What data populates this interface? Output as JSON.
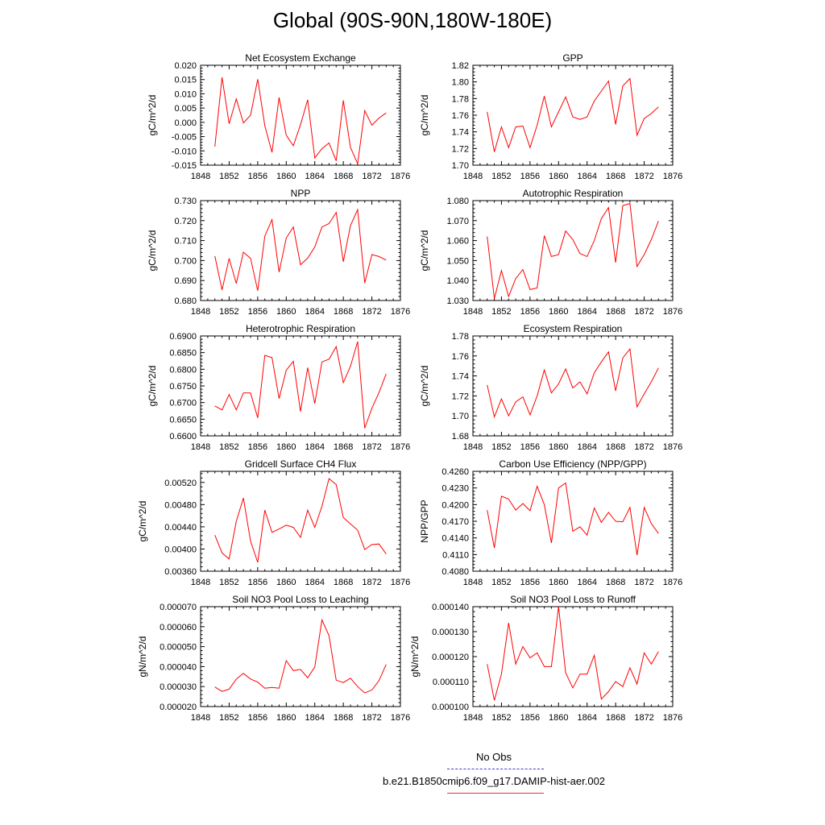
{
  "figure": {
    "title": "Global (90S-90N,180W-180E)",
    "legend": {
      "obs_label": "No Obs",
      "case_label": "b.e21.B1850cmip6.f09_g17.DAMIP-hist-aer.002",
      "obs_color": "#3b3bd6",
      "case_color": "#ff0000"
    }
  },
  "chart_data": [
    {
      "type": "line",
      "title": "Net Ecosystem Exchange",
      "ylabel": "gC/m^2/d",
      "xlabel": "",
      "xlim": [
        1848,
        1876
      ],
      "ylim": [
        -0.015,
        0.02
      ],
      "xticks": [
        "1848",
        "1852",
        "1856",
        "1860",
        "1864",
        "1868",
        "1872",
        "1876"
      ],
      "yticks": [
        "-0.015",
        "-0.010",
        "-0.005",
        "0.000",
        "0.005",
        "0.010",
        "0.015",
        "0.020"
      ],
      "series": [
        {
          "color": "#ff0000",
          "x": [
            1850,
            1851,
            1852,
            1853,
            1854,
            1855,
            1856,
            1857,
            1858,
            1859,
            1860,
            1861,
            1862,
            1863,
            1864,
            1865,
            1866,
            1867,
            1868,
            1869,
            1870,
            1871,
            1872,
            1873,
            1874
          ],
          "y": [
            -0.0085,
            0.0158,
            -0.0005,
            0.0082,
            -0.0002,
            0.0025,
            0.0151,
            -0.0012,
            -0.0105,
            0.0087,
            -0.0045,
            -0.0082,
            -0.0008,
            0.0079,
            -0.0125,
            -0.0092,
            -0.0072,
            -0.0135,
            0.0077,
            -0.0088,
            -0.0145,
            0.0041,
            -0.001,
            0.0015,
            0.0033
          ]
        }
      ]
    },
    {
      "type": "line",
      "title": "GPP",
      "ylabel": "gC/m^2/d",
      "xlabel": "",
      "xlim": [
        1848,
        1876
      ],
      "ylim": [
        1.7,
        1.82
      ],
      "xticks": [
        "1848",
        "1852",
        "1856",
        "1860",
        "1864",
        "1868",
        "1872",
        "1876"
      ],
      "yticks": [
        "1.70",
        "1.72",
        "1.74",
        "1.76",
        "1.78",
        "1.80",
        "1.82"
      ],
      "series": [
        {
          "color": "#ff0000",
          "x": [
            1850,
            1851,
            1852,
            1853,
            1854,
            1855,
            1856,
            1857,
            1858,
            1859,
            1860,
            1861,
            1862,
            1863,
            1864,
            1865,
            1866,
            1867,
            1868,
            1869,
            1870,
            1871,
            1872,
            1873,
            1874
          ],
          "y": [
            1.764,
            1.716,
            1.746,
            1.721,
            1.746,
            1.747,
            1.721,
            1.748,
            1.783,
            1.746,
            1.764,
            1.782,
            1.758,
            1.755,
            1.758,
            1.777,
            1.789,
            1.801,
            1.749,
            1.795,
            1.804,
            1.736,
            1.756,
            1.762,
            1.77
          ]
        }
      ]
    },
    {
      "type": "line",
      "title": "NPP",
      "ylabel": "gC/m^2/d",
      "xlabel": "",
      "xlim": [
        1848,
        1876
      ],
      "ylim": [
        0.68,
        0.73
      ],
      "xticks": [
        "1848",
        "1852",
        "1856",
        "1860",
        "1864",
        "1868",
        "1872",
        "1876"
      ],
      "yticks": [
        "0.680",
        "0.690",
        "0.700",
        "0.710",
        "0.720",
        "0.730"
      ],
      "series": [
        {
          "color": "#ff0000",
          "x": [
            1850,
            1851,
            1852,
            1853,
            1854,
            1855,
            1856,
            1857,
            1858,
            1859,
            1860,
            1861,
            1862,
            1863,
            1864,
            1865,
            1866,
            1867,
            1868,
            1869,
            1870,
            1871,
            1872,
            1873,
            1874
          ],
          "y": [
            0.7022,
            0.6853,
            0.7011,
            0.6885,
            0.7042,
            0.7011,
            0.6849,
            0.7122,
            0.7205,
            0.6942,
            0.7113,
            0.7168,
            0.6979,
            0.7012,
            0.7068,
            0.7168,
            0.7185,
            0.7241,
            0.6994,
            0.7175,
            0.7255,
            0.6888,
            0.703,
            0.702,
            0.7002
          ]
        }
      ]
    },
    {
      "type": "line",
      "title": "Autotrophic Respiration",
      "ylabel": "gC/m^2/d",
      "xlabel": "",
      "xlim": [
        1848,
        1876
      ],
      "ylim": [
        1.03,
        1.08
      ],
      "xticks": [
        "1848",
        "1852",
        "1856",
        "1860",
        "1864",
        "1868",
        "1872",
        "1876"
      ],
      "yticks": [
        "1.030",
        "1.040",
        "1.050",
        "1.060",
        "1.070",
        "1.080"
      ],
      "series": [
        {
          "color": "#ff0000",
          "x": [
            1850,
            1851,
            1852,
            1853,
            1854,
            1855,
            1856,
            1857,
            1858,
            1859,
            1860,
            1861,
            1862,
            1863,
            1864,
            1865,
            1866,
            1867,
            1868,
            1869,
            1870,
            1871,
            1872,
            1873,
            1874
          ],
          "y": [
            1.062,
            1.031,
            1.045,
            1.032,
            1.041,
            1.0455,
            1.0355,
            1.0363,
            1.0625,
            1.052,
            1.053,
            1.0648,
            1.0605,
            1.0535,
            1.052,
            1.06,
            1.071,
            1.0765,
            1.049,
            1.0775,
            1.0785,
            1.047,
            1.053,
            1.0605,
            1.0698
          ]
        }
      ]
    },
    {
      "type": "line",
      "title": "Heterotrophic Respiration",
      "ylabel": "gC/m^2/d",
      "xlabel": "",
      "xlim": [
        1848,
        1876
      ],
      "ylim": [
        0.66,
        0.69
      ],
      "xticks": [
        "1848",
        "1852",
        "1856",
        "1860",
        "1864",
        "1868",
        "1872",
        "1876"
      ],
      "yticks": [
        "0.6600",
        "0.6650",
        "0.6700",
        "0.6750",
        "0.6800",
        "0.6850",
        "0.6900"
      ],
      "series": [
        {
          "color": "#ff0000",
          "x": [
            1850,
            1851,
            1852,
            1853,
            1854,
            1855,
            1856,
            1857,
            1858,
            1859,
            1860,
            1861,
            1862,
            1863,
            1864,
            1865,
            1866,
            1867,
            1868,
            1869,
            1870,
            1871,
            1872,
            1873,
            1874
          ],
          "y": [
            0.669,
            0.6678,
            0.6724,
            0.6678,
            0.6729,
            0.6729,
            0.6654,
            0.6842,
            0.6835,
            0.6712,
            0.6797,
            0.6824,
            0.6673,
            0.6805,
            0.6697,
            0.6822,
            0.683,
            0.6868,
            0.676,
            0.6809,
            0.6883,
            0.6623,
            0.6683,
            0.673,
            0.6786
          ]
        }
      ]
    },
    {
      "type": "line",
      "title": "Ecosystem Respiration",
      "ylabel": "gC/m^2/d",
      "xlabel": "",
      "xlim": [
        1848,
        1876
      ],
      "ylim": [
        1.68,
        1.78
      ],
      "xticks": [
        "1848",
        "1852",
        "1856",
        "1860",
        "1864",
        "1868",
        "1872",
        "1876"
      ],
      "yticks": [
        "1.68",
        "1.70",
        "1.72",
        "1.74",
        "1.76",
        "1.78"
      ],
      "series": [
        {
          "color": "#ff0000",
          "x": [
            1850,
            1851,
            1852,
            1853,
            1854,
            1855,
            1856,
            1857,
            1858,
            1859,
            1860,
            1861,
            1862,
            1863,
            1864,
            1865,
            1866,
            1867,
            1868,
            1869,
            1870,
            1871,
            1872,
            1873,
            1874
          ],
          "y": [
            1.731,
            1.699,
            1.717,
            1.7,
            1.714,
            1.719,
            1.701,
            1.72,
            1.746,
            1.723,
            1.732,
            1.747,
            1.728,
            1.734,
            1.722,
            1.743,
            1.754,
            1.764,
            1.725,
            1.758,
            1.767,
            1.709,
            1.722,
            1.734,
            1.748
          ]
        }
      ]
    },
    {
      "type": "line",
      "title": "Gridcell Surface CH4 Flux",
      "ylabel": "gC/m^2/d",
      "xlabel": "",
      "xlim": [
        1848,
        1876
      ],
      "ylim": [
        0.0036,
        0.0054
      ],
      "xticks": [
        "1848",
        "1852",
        "1856",
        "1860",
        "1864",
        "1868",
        "1872",
        "1876"
      ],
      "yticks": [
        "0.00360",
        "0.00400",
        "0.00440",
        "0.00480",
        "0.00520"
      ],
      "series": [
        {
          "color": "#ff0000",
          "x": [
            1850,
            1851,
            1852,
            1853,
            1854,
            1855,
            1856,
            1857,
            1858,
            1859,
            1860,
            1861,
            1862,
            1863,
            1864,
            1865,
            1866,
            1867,
            1868,
            1869,
            1870,
            1871,
            1872,
            1873,
            1874
          ],
          "y": [
            0.00425,
            0.00393,
            0.00382,
            0.0045,
            0.00492,
            0.00414,
            0.00376,
            0.0047,
            0.0043,
            0.00436,
            0.00443,
            0.00439,
            0.00421,
            0.0047,
            0.00439,
            0.00477,
            0.00527,
            0.00516,
            0.00457,
            0.00445,
            0.00434,
            0.00399,
            0.00408,
            0.00409,
            0.00391
          ]
        }
      ]
    },
    {
      "type": "line",
      "title": "Carbon Use Efficiency (NPP/GPP)",
      "ylabel": "NPP/GPP",
      "xlabel": "",
      "xlim": [
        1848,
        1876
      ],
      "ylim": [
        0.408,
        0.426
      ],
      "xticks": [
        "1848",
        "1852",
        "1856",
        "1860",
        "1864",
        "1868",
        "1872",
        "1876"
      ],
      "yticks": [
        "0.4080",
        "0.4110",
        "0.4140",
        "0.4170",
        "0.4200",
        "0.4230",
        "0.4260"
      ],
      "series": [
        {
          "color": "#ff0000",
          "x": [
            1850,
            1851,
            1852,
            1853,
            1854,
            1855,
            1856,
            1857,
            1858,
            1859,
            1860,
            1861,
            1862,
            1863,
            1864,
            1865,
            1866,
            1867,
            1868,
            1869,
            1870,
            1871,
            1872,
            1873,
            1874
          ],
          "y": [
            0.419,
            0.4122,
            0.4215,
            0.421,
            0.419,
            0.4202,
            0.4189,
            0.4233,
            0.42,
            0.4131,
            0.423,
            0.4239,
            0.4152,
            0.416,
            0.4145,
            0.4194,
            0.4168,
            0.4186,
            0.417,
            0.4169,
            0.4195,
            0.4109,
            0.4195,
            0.4166,
            0.4148
          ]
        }
      ]
    },
    {
      "type": "line",
      "title": "Soil NO3 Pool Loss to Leaching",
      "ylabel": "gN/m^2/d",
      "xlabel": "",
      "xlim": [
        1848,
        1876
      ],
      "ylim": [
        2e-05,
        7e-05
      ],
      "xticks": [
        "1848",
        "1852",
        "1856",
        "1860",
        "1864",
        "1868",
        "1872",
        "1876"
      ],
      "yticks": [
        "0.000020",
        "0.000030",
        "0.000040",
        "0.000050",
        "0.000060",
        "0.000070"
      ],
      "series": [
        {
          "color": "#ff0000",
          "x": [
            1850,
            1851,
            1852,
            1853,
            1854,
            1855,
            1856,
            1857,
            1858,
            1859,
            1860,
            1861,
            1862,
            1863,
            1864,
            1865,
            1866,
            1867,
            1868,
            1869,
            1870,
            1871,
            1872,
            1873,
            1874
          ],
          "y": [
            2.98e-05,
            2.76e-05,
            2.87e-05,
            3.37e-05,
            3.66e-05,
            3.38e-05,
            3.22e-05,
            2.92e-05,
            2.96e-05,
            2.92e-05,
            4.3e-05,
            3.8e-05,
            3.86e-05,
            3.44e-05,
            3.98e-05,
            6.34e-05,
            5.55e-05,
            3.32e-05,
            3.2e-05,
            3.42e-05,
            3e-05,
            2.68e-05,
            2.83e-05,
            3.3e-05,
            4.11e-05
          ]
        }
      ]
    },
    {
      "type": "line",
      "title": "Soil NO3 Pool Loss to Runoff",
      "ylabel": "gN/m^2/d",
      "xlabel": "",
      "xlim": [
        1848,
        1876
      ],
      "ylim": [
        0.0001,
        0.00014
      ],
      "xticks": [
        "1848",
        "1852",
        "1856",
        "1860",
        "1864",
        "1868",
        "1872",
        "1876"
      ],
      "yticks": [
        "0.000100",
        "0.000110",
        "0.000120",
        "0.000130",
        "0.000140"
      ],
      "series": [
        {
          "color": "#ff0000",
          "x": [
            1850,
            1851,
            1852,
            1853,
            1854,
            1855,
            1856,
            1857,
            1858,
            1859,
            1860,
            1861,
            1862,
            1863,
            1864,
            1865,
            1866,
            1867,
            1868,
            1869,
            1870,
            1871,
            1872,
            1873,
            1874
          ],
          "y": [
            0.000117,
            0.0001025,
            0.000113,
            0.0001335,
            0.000117,
            0.000124,
            0.0001195,
            0.0001215,
            0.000116,
            0.000116,
            0.00014,
            0.0001135,
            0.0001075,
            0.000113,
            0.000113,
            0.0001205,
            0.000103,
            0.000106,
            0.00011,
            0.000108,
            0.0001155,
            0.000109,
            0.0001215,
            0.000117,
            0.000122
          ]
        }
      ]
    }
  ]
}
